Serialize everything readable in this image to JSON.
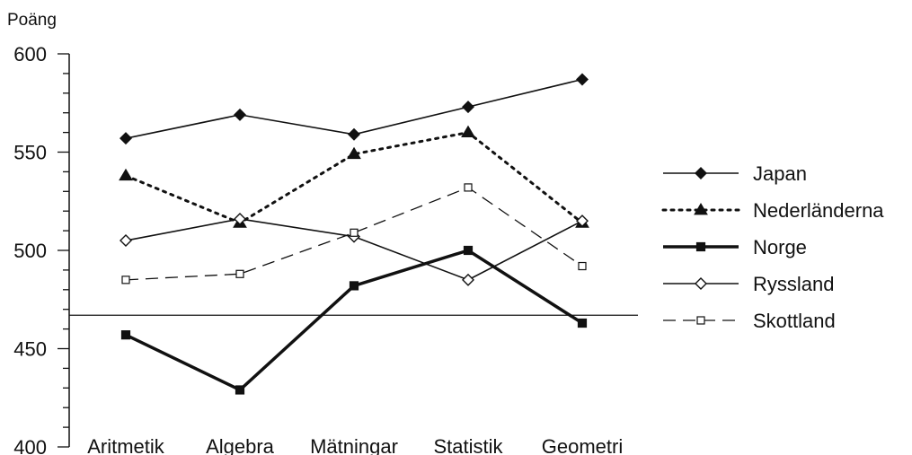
{
  "chart_data": {
    "type": "line",
    "title": "",
    "ylabel": "Poäng",
    "xlabel": "",
    "ylim": [
      400,
      600
    ],
    "yticks": [
      400,
      450,
      500,
      550,
      600
    ],
    "categories": [
      "Aritmetik",
      "Algebra",
      "Mätningar",
      "Statistik",
      "Geometri"
    ],
    "reference_line": 467,
    "legend_position": "right",
    "grid": false,
    "series": [
      {
        "name": "Japan",
        "values": [
          557,
          569,
          559,
          573,
          587
        ],
        "marker": "diamond-filled",
        "line": "solid",
        "color": "#111111"
      },
      {
        "name": "Nederländerna",
        "values": [
          538,
          514,
          549,
          560,
          514
        ],
        "marker": "triangle-filled",
        "line": "dotted",
        "color": "#111111"
      },
      {
        "name": "Norge",
        "values": [
          457,
          429,
          482,
          500,
          463
        ],
        "marker": "square-filled",
        "line": "solid-thick",
        "color": "#111111"
      },
      {
        "name": "Ryssland",
        "values": [
          505,
          516,
          507,
          485,
          515
        ],
        "marker": "diamond-open",
        "line": "solid",
        "color": "#111111"
      },
      {
        "name": "Skottland",
        "values": [
          485,
          488,
          509,
          532,
          492
        ],
        "marker": "square-open",
        "line": "dashed",
        "color": "#111111"
      }
    ]
  }
}
